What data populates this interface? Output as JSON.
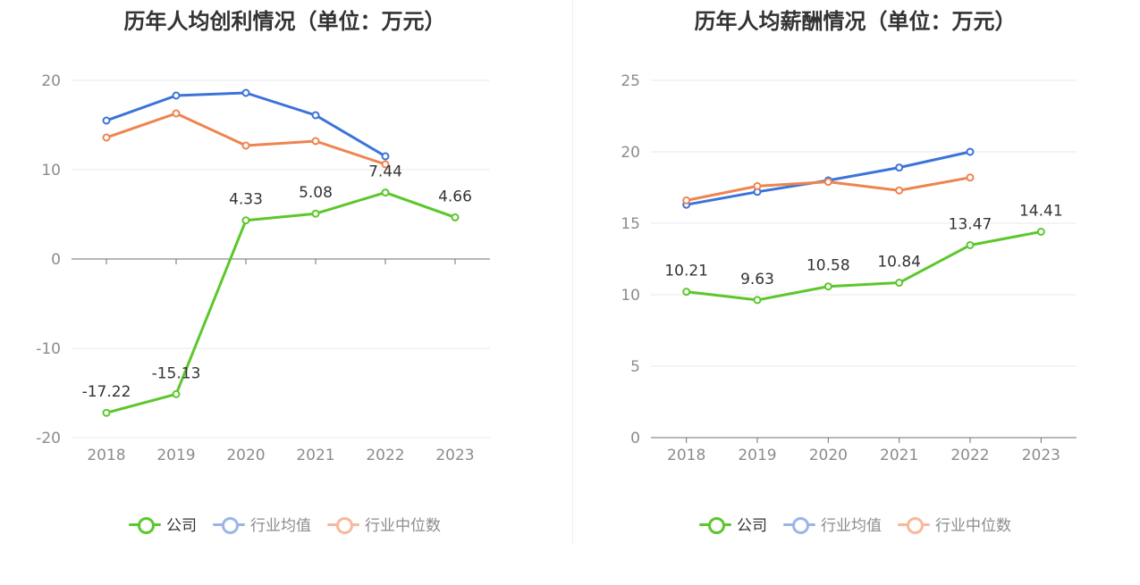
{
  "chart_data": [
    {
      "type": "line",
      "title": "历年人均创利情况（单位：万元）",
      "categories": [
        "2018",
        "2019",
        "2020",
        "2021",
        "2022",
        "2023"
      ],
      "ylim": [
        -20,
        20
      ],
      "yticks": [
        20,
        10,
        0,
        -10,
        -20
      ],
      "grid": true,
      "legend_position": "bottom-center",
      "series": [
        {
          "name": "公司",
          "color": "#5cc72c",
          "values": [
            -17.22,
            -15.13,
            4.33,
            5.08,
            7.44,
            4.66
          ],
          "labels": [
            "-17.22",
            "-15.13",
            "4.33",
            "5.08",
            "7.44",
            "4.66"
          ]
        },
        {
          "name": "行业均值",
          "color": "#3b73d9",
          "values": [
            15.5,
            18.3,
            18.6,
            16.1,
            11.5,
            null
          ]
        },
        {
          "name": "行业中位数",
          "color": "#ee8450",
          "values": [
            13.6,
            16.3,
            12.7,
            13.2,
            10.6,
            null
          ]
        }
      ]
    },
    {
      "type": "line",
      "title": "历年人均薪酬情况（单位：万元）",
      "categories": [
        "2018",
        "2019",
        "2020",
        "2021",
        "2022",
        "2023"
      ],
      "ylim": [
        0,
        25
      ],
      "yticks": [
        25,
        20,
        15,
        10,
        5,
        0
      ],
      "grid": true,
      "legend_position": "bottom-center",
      "series": [
        {
          "name": "公司",
          "color": "#5cc72c",
          "values": [
            10.21,
            9.63,
            10.58,
            10.84,
            13.47,
            14.41
          ],
          "labels": [
            "10.21",
            "9.63",
            "10.58",
            "10.84",
            "13.47",
            "14.41"
          ]
        },
        {
          "name": "行业均值",
          "color": "#3b73d9",
          "values": [
            16.3,
            17.2,
            18.0,
            18.9,
            20.0,
            null
          ]
        },
        {
          "name": "行业中位数",
          "color": "#ee8450",
          "values": [
            16.6,
            17.6,
            17.9,
            17.3,
            18.2,
            null
          ]
        }
      ]
    }
  ],
  "legend": [
    {
      "label": "公司",
      "color": "#5cc72c",
      "text_color": "#333333"
    },
    {
      "label": "行业均值",
      "color": "#9ab5e8",
      "text_color": "#8c8c8c"
    },
    {
      "label": "行业中位数",
      "color": "#f7b99b",
      "text_color": "#8c8c8c"
    }
  ]
}
